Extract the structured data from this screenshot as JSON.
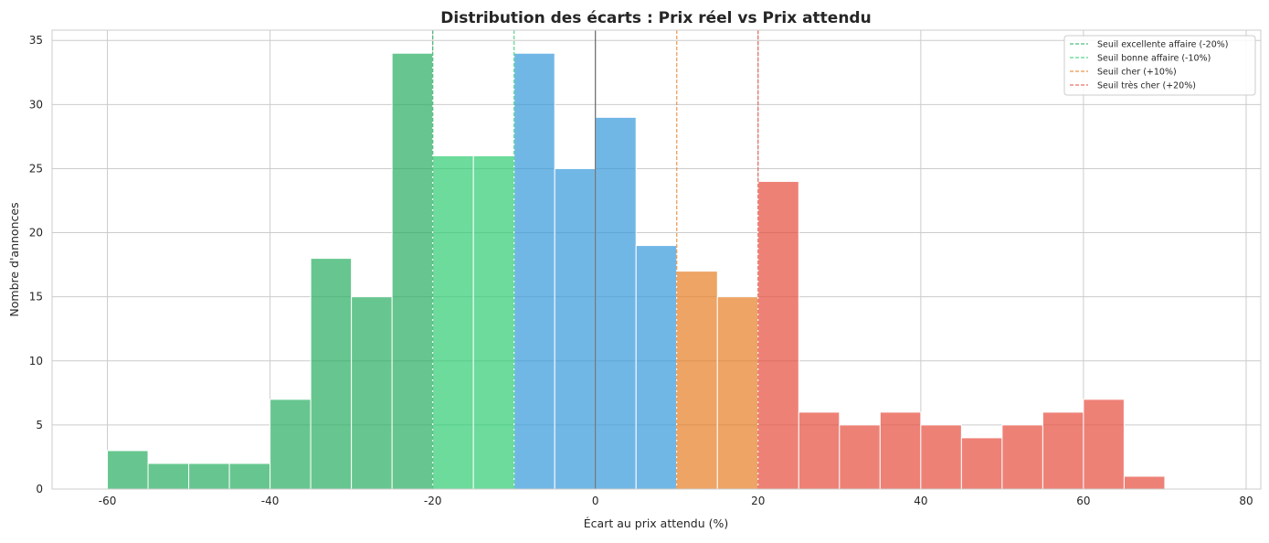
{
  "chart_data": {
    "type": "bar",
    "title": "Distribution des écarts : Prix réel vs Prix attendu",
    "xlabel": "Écart au prix attendu (%)",
    "ylabel": "Nombre d'annonces",
    "xlim": [
      -66.8,
      81.8
    ],
    "ylim": [
      0,
      35.8
    ],
    "xticks": [
      -60,
      -40,
      -20,
      0,
      20,
      40,
      60,
      80
    ],
    "yticks": [
      0,
      5,
      10,
      15,
      20,
      25,
      30,
      35
    ],
    "grid": true,
    "legend_position": "top-right",
    "bin_width": 5,
    "bin_starts": [
      -60,
      -55,
      -50,
      -45,
      -40,
      -35,
      -30,
      -25,
      -20,
      -15,
      -10,
      -5,
      0,
      5,
      10,
      15,
      20,
      25,
      30,
      35,
      40,
      45,
      50,
      55,
      60,
      65
    ],
    "values": [
      3,
      2,
      2,
      2,
      7,
      18,
      15,
      34,
      26,
      26,
      34,
      25,
      29,
      19,
      17,
      15,
      24,
      6,
      5,
      6,
      5,
      4,
      5,
      6,
      7,
      1
    ],
    "colors": {
      "excellent": "#27ae60",
      "good": "#2ecc71",
      "fair": "#3498db",
      "expensive": "#e67e22",
      "very_expensive": "#e74c3c",
      "zero_line": "#555555"
    },
    "thresholds": [
      {
        "x": -20,
        "label": "Seuil excellente affaire (-20%)",
        "color": "#27ae60"
      },
      {
        "x": -10,
        "label": "Seuil bonne affaire (-10%)",
        "color": "#2ecc71"
      },
      {
        "x": 10,
        "label": "Seuil cher (+10%)",
        "color": "#e67e22"
      },
      {
        "x": 20,
        "label": "Seuil très cher (+20%)",
        "color": "#e74c3c"
      }
    ]
  }
}
